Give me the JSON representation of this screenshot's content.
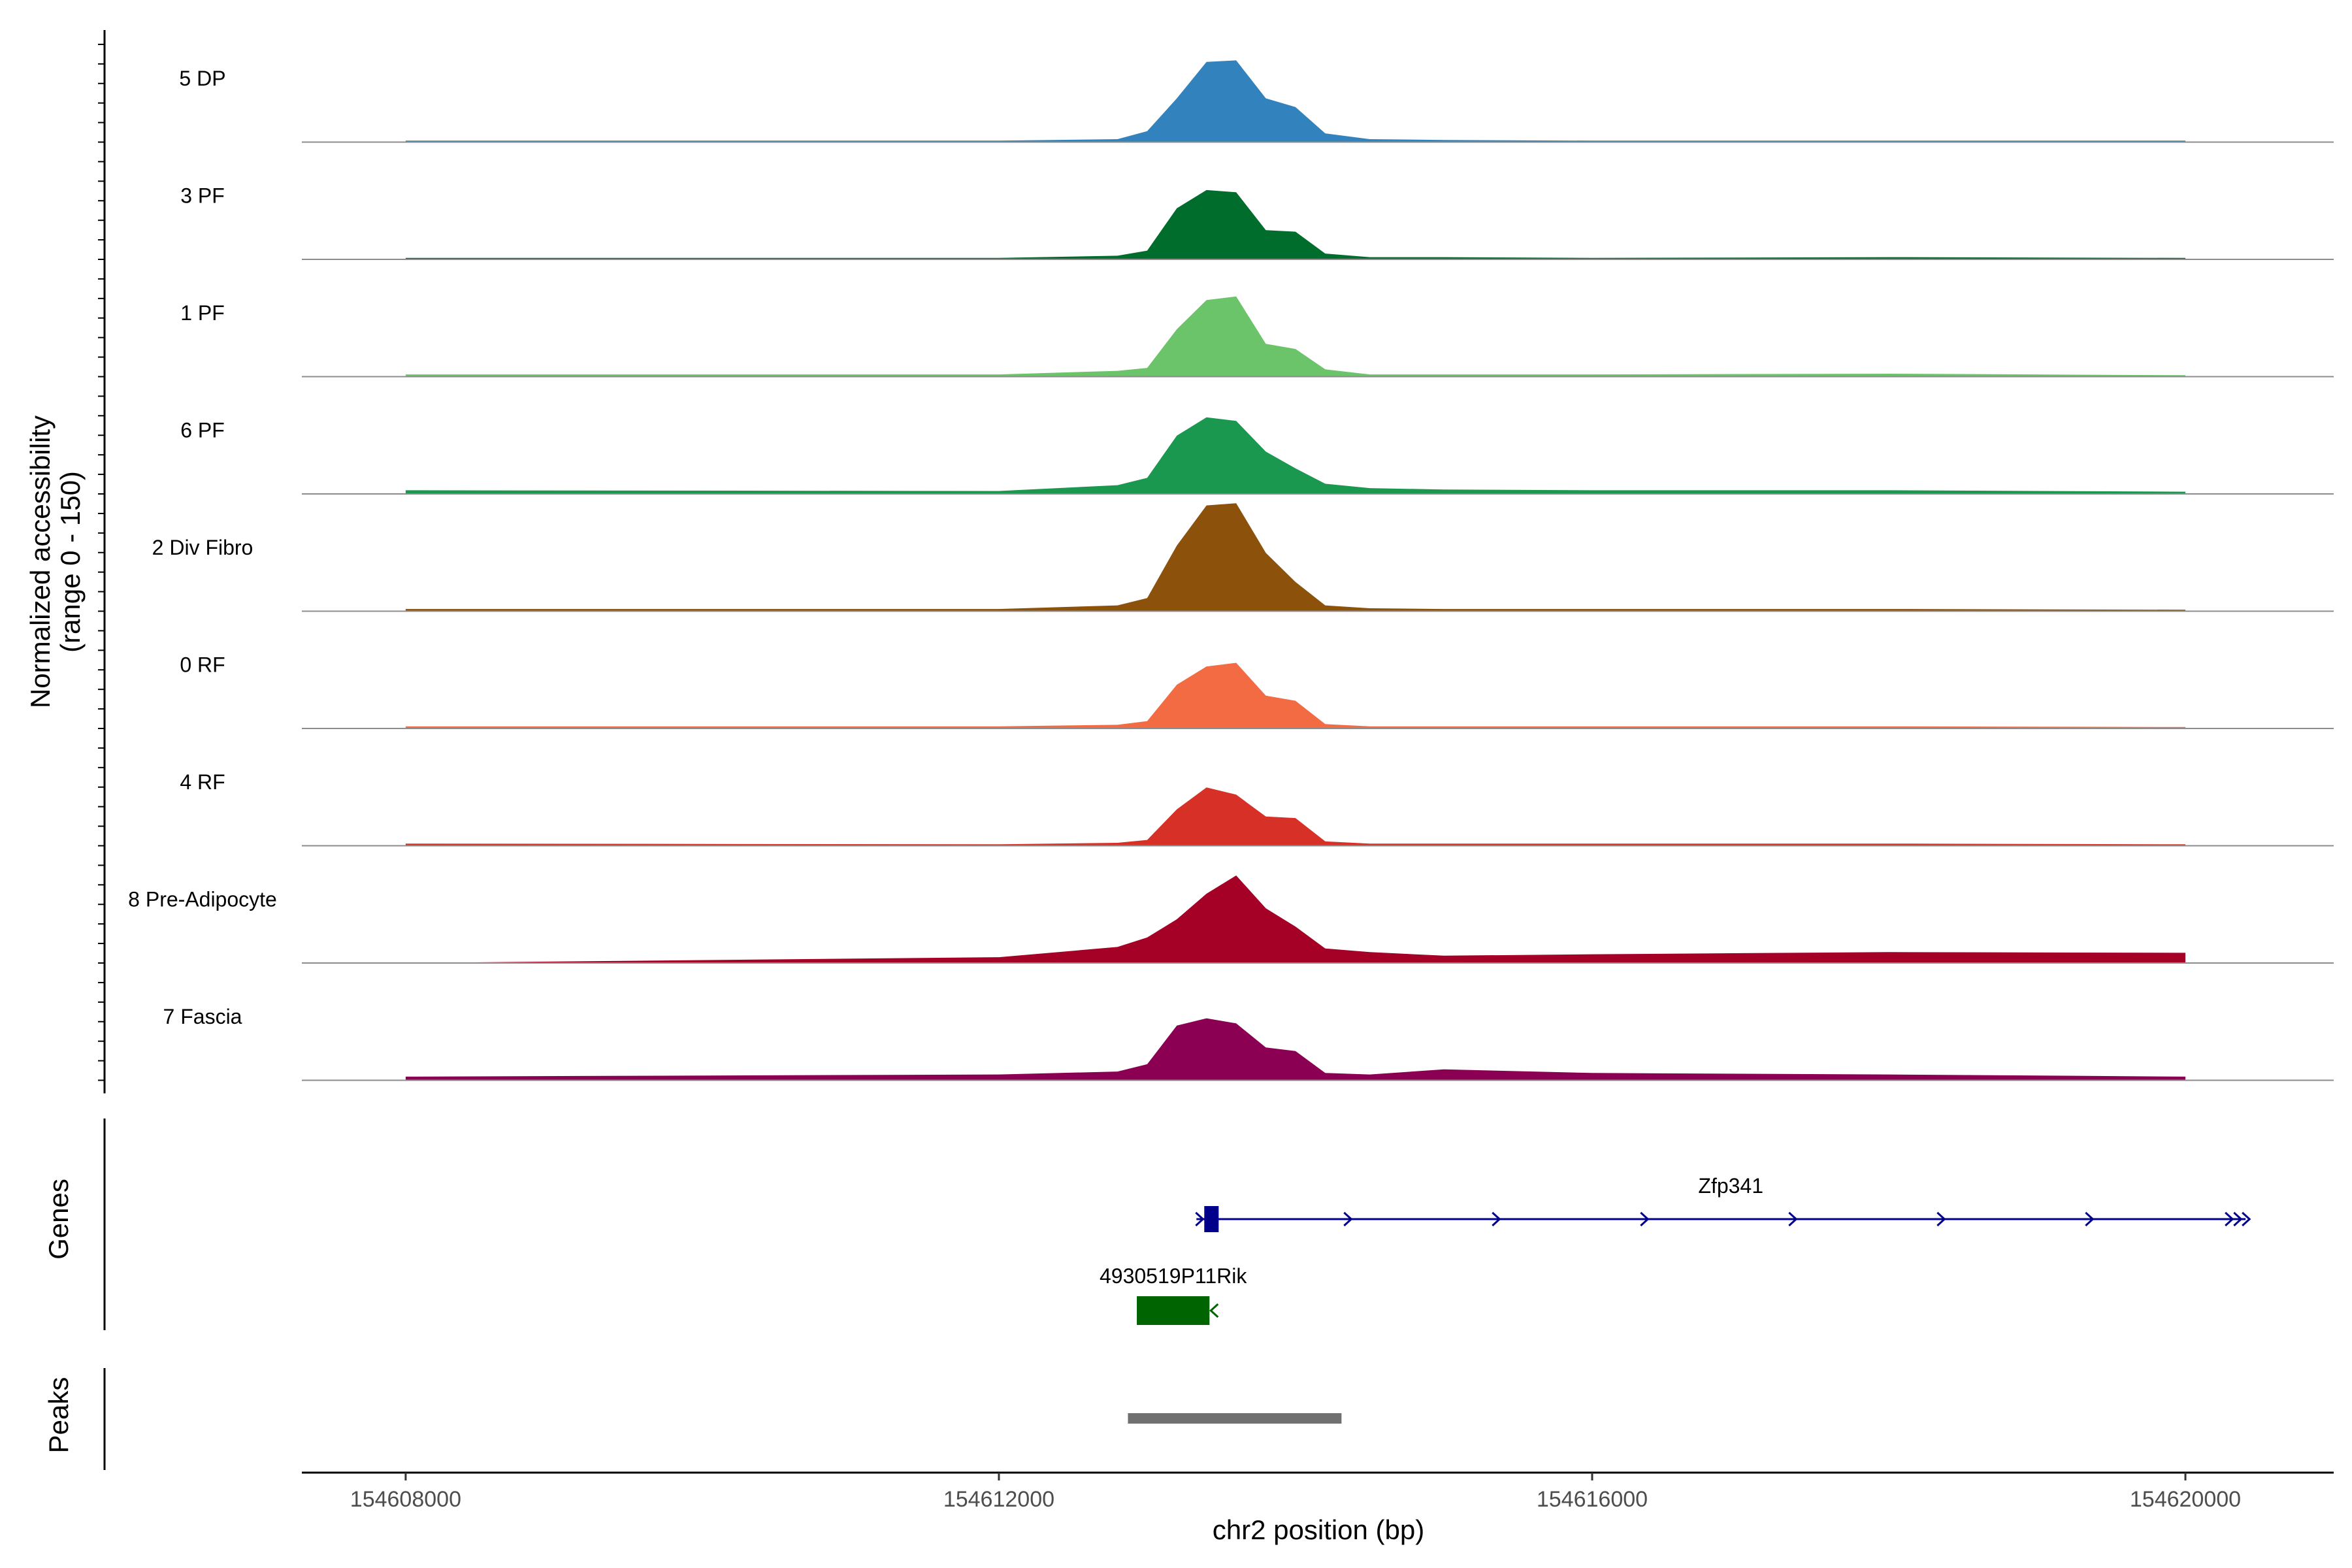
{
  "chart_data": {
    "type": "area",
    "title": "",
    "ylabel": "Normalized accessibility",
    "ylabel_range": "(range 0 - 150)",
    "xlabel": "chr2 position (bp)",
    "xlim": [
      154607300,
      154621000
    ],
    "ylim": [
      0,
      150
    ],
    "x_ticks": [
      154608000,
      154612000,
      154616000,
      154620000
    ],
    "x_tick_labels": [
      "154608000",
      "154612000",
      "154616000",
      "154620000"
    ],
    "x": [
      154608000,
      154612000,
      154612800,
      154613000,
      154613200,
      154613400,
      154613600,
      154613800,
      154614000,
      154614200,
      154614500,
      154615000,
      154616000,
      154618000,
      154620000
    ],
    "series": [
      {
        "name": "5 DP",
        "color": "#3182BD",
        "values": [
          2,
          2,
          4,
          15,
          60,
          110,
          112,
          60,
          48,
          12,
          4,
          3,
          2,
          2,
          2
        ]
      },
      {
        "name": "3 PF",
        "color": "#006D2C",
        "values": [
          2,
          2,
          5,
          12,
          70,
          95,
          92,
          40,
          38,
          8,
          3,
          3,
          2,
          3,
          2
        ]
      },
      {
        "name": "1 PF",
        "color": "#6CC46A",
        "values": [
          3,
          3,
          8,
          12,
          65,
          105,
          110,
          45,
          38,
          10,
          3,
          3,
          3,
          4,
          2
        ]
      },
      {
        "name": "6 PF",
        "color": "#1A9850",
        "values": [
          5,
          4,
          12,
          22,
          80,
          105,
          100,
          58,
          35,
          14,
          8,
          6,
          5,
          5,
          3
        ]
      },
      {
        "name": "2 Div Fibro",
        "color": "#8C510A",
        "values": [
          3,
          3,
          8,
          18,
          90,
          145,
          148,
          80,
          40,
          8,
          4,
          3,
          3,
          3,
          2
        ]
      },
      {
        "name": "0 RF",
        "color": "#F26B43",
        "values": [
          3,
          3,
          5,
          10,
          60,
          85,
          90,
          45,
          38,
          6,
          3,
          3,
          3,
          3,
          2
        ]
      },
      {
        "name": "4 RF",
        "color": "#D73027",
        "values": [
          3,
          2,
          4,
          8,
          50,
          80,
          70,
          40,
          38,
          6,
          3,
          3,
          3,
          3,
          2
        ]
      },
      {
        "name": "8 Pre-Adipocyte",
        "color": "#A50026",
        "values": [
          0,
          8,
          22,
          35,
          60,
          95,
          120,
          75,
          50,
          20,
          15,
          10,
          12,
          15,
          14
        ]
      },
      {
        "name": "7 Fascia",
        "color": "#8B0052",
        "values": [
          5,
          8,
          12,
          22,
          75,
          85,
          78,
          45,
          40,
          10,
          8,
          15,
          10,
          8,
          5
        ]
      }
    ],
    "genes": [
      {
        "name": "Zfp341",
        "start": 154613420,
        "end": 154620450,
        "strand": "+",
        "color": "#00008B"
      },
      {
        "name": "4930519P11Rik",
        "start": 154612930,
        "end": 154613420,
        "strand": "-",
        "color": "#006400"
      }
    ],
    "peaks": [
      {
        "start": 154612870,
        "end": 154614310,
        "color": "#707070"
      }
    ],
    "panel_labels": {
      "genes": "Genes",
      "peaks": "Peaks"
    }
  }
}
